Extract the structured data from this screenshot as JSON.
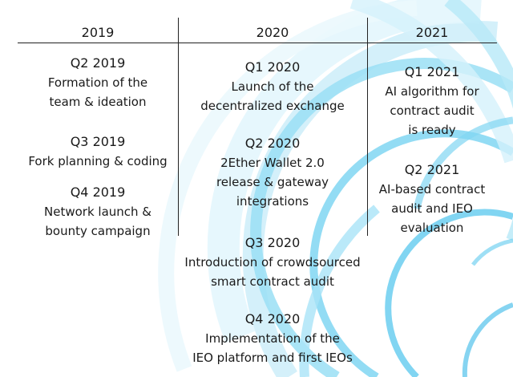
{
  "columns": [
    {
      "year": "2019",
      "entries": [
        {
          "quarter": "Q2 2019",
          "lines": [
            "Formation of the",
            "team & ideation"
          ]
        },
        {
          "quarter": "Q3 2019",
          "lines": [
            "Fork planning & coding"
          ]
        },
        {
          "quarter": "Q4 2019",
          "lines": [
            "Network launch &",
            "bounty campaign"
          ]
        }
      ]
    },
    {
      "year": "2020",
      "entries": [
        {
          "quarter": "Q1 2020",
          "lines": [
            "Launch of the",
            "decentralized exchange"
          ]
        },
        {
          "quarter": "Q2 2020",
          "lines": [
            "2Ether Wallet 2.0",
            "release & gateway",
            "integrations"
          ]
        },
        {
          "quarter": "Q3 2020",
          "lines": [
            "Introduction of crowdsourced",
            "smart contract audit"
          ]
        },
        {
          "quarter": "Q4 2020",
          "lines": [
            "Implementation of the",
            "IEO platform and first IEOs"
          ]
        }
      ]
    },
    {
      "year": "2021",
      "entries": [
        {
          "quarter": "Q1 2021",
          "lines": [
            "AI algorithm for",
            "contract audit",
            "is ready"
          ]
        },
        {
          "quarter": "Q2 2021",
          "lines": [
            "AI-based contract",
            "audit and IEO",
            "evaluation"
          ]
        }
      ]
    }
  ]
}
